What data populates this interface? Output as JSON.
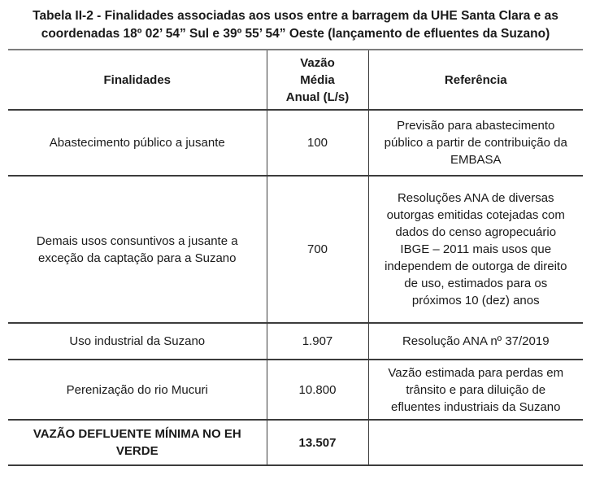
{
  "title": {
    "line1": "Tabela II-2 - Finalidades associadas aos usos entre a barragem da UHE Santa Clara e as",
    "line2": "coordenadas 18º 02’ 54” Sul e 39º 55’ 54” Oeste (lançamento de efluentes da Suzano)"
  },
  "table": {
    "headers": {
      "finalidades": "Finalidades",
      "vazao": "Vazão\nMédia\nAnual (L/s)",
      "referencia": "Referência"
    },
    "rows": [
      {
        "finalidade": "Abastecimento público a jusante",
        "vazao": "100",
        "referencia": "Previsão para abastecimento público a partir de contribuição da EMBASA"
      },
      {
        "finalidade": "Demais usos consuntivos a jusante a exceção da captação para a Suzano",
        "vazao": "700",
        "referencia": "Resoluções ANA de diversas outorgas emitidas cotejadas com dados do censo agropecuário IBGE – 2011 mais usos que independem de outorga de direito de uso, estimados para os próximos 10 (dez) anos"
      },
      {
        "finalidade": "Uso industrial da Suzano",
        "vazao": "1.907",
        "referencia": "Resolução ANA nº 37/2019"
      },
      {
        "finalidade": "Perenização do rio Mucuri",
        "vazao": "10.800",
        "referencia": "Vazão estimada para perdas em trânsito e para diluição de efluentes industriais da Suzano"
      },
      {
        "finalidade": "VAZÃO DEFLUENTE MÍNIMA NO EH VERDE",
        "vazao": "13.507",
        "referencia": ""
      }
    ]
  }
}
